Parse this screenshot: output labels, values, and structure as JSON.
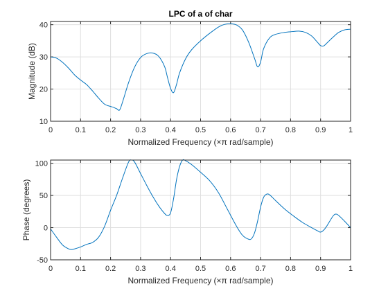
{
  "colors": {
    "line": "#0072bd",
    "grid": "#dfdfdf",
    "axis": "#262626",
    "background": "#ffffff"
  },
  "chart_data": [
    {
      "type": "line",
      "title": "LPC of a of char",
      "xlabel": "Normalized Frequency  (×π rad/sample)",
      "ylabel": "Magnitude (dB)",
      "xlim": [
        0,
        1
      ],
      "ylim": [
        10,
        41
      ],
      "xticks": [
        "0",
        "0.1",
        "0.2",
        "0.3",
        "0.4",
        "0.5",
        "0.6",
        "0.7",
        "0.8",
        "0.9",
        "1"
      ],
      "yticks": [
        "10",
        "20",
        "30",
        "40"
      ],
      "grid": true,
      "x": [
        0,
        0.02,
        0.04,
        0.06,
        0.08,
        0.1,
        0.12,
        0.14,
        0.16,
        0.18,
        0.2,
        0.21,
        0.22,
        0.23,
        0.24,
        0.26,
        0.28,
        0.3,
        0.32,
        0.34,
        0.36,
        0.38,
        0.39,
        0.4,
        0.41,
        0.42,
        0.43,
        0.45,
        0.47,
        0.5,
        0.53,
        0.56,
        0.58,
        0.6,
        0.62,
        0.64,
        0.66,
        0.68,
        0.69,
        0.7,
        0.71,
        0.73,
        0.75,
        0.78,
        0.8,
        0.83,
        0.85,
        0.87,
        0.89,
        0.9,
        0.91,
        0.92,
        0.94,
        0.96,
        0.98,
        1
      ],
      "y": [
        30,
        29.6,
        28.3,
        26.5,
        24.4,
        22.8,
        21.4,
        19.4,
        17.2,
        15.3,
        14.6,
        14.3,
        13.9,
        13.5,
        16,
        22,
        26.8,
        29.8,
        31,
        31.2,
        30.2,
        27,
        23.5,
        20.2,
        18.9,
        21.5,
        25,
        29.4,
        32.2,
        35,
        37.3,
        39.3,
        40.1,
        40.3,
        39.9,
        38.3,
        34.6,
        29.5,
        26.9,
        28.4,
        32.5,
        35.9,
        37,
        37.6,
        37.8,
        38,
        37.6,
        36.5,
        34.5,
        33.5,
        33.4,
        34.2,
        36,
        37.6,
        38.4,
        38.6
      ]
    },
    {
      "type": "line",
      "title": "",
      "xlabel": "Normalized Frequency  (×π rad/sample)",
      "ylabel": "Phase (degrees)",
      "xlim": [
        0,
        1
      ],
      "ylim": [
        -50,
        105
      ],
      "xticks": [
        "0",
        "0.1",
        "0.2",
        "0.3",
        "0.4",
        "0.5",
        "0.6",
        "0.7",
        "0.8",
        "0.9",
        "1"
      ],
      "yticks": [
        "-50",
        "0",
        "50",
        "100"
      ],
      "grid": true,
      "x": [
        0,
        0.02,
        0.04,
        0.06,
        0.07,
        0.08,
        0.1,
        0.12,
        0.14,
        0.16,
        0.18,
        0.2,
        0.22,
        0.24,
        0.26,
        0.27,
        0.28,
        0.3,
        0.32,
        0.34,
        0.36,
        0.38,
        0.39,
        0.4,
        0.41,
        0.42,
        0.43,
        0.44,
        0.45,
        0.47,
        0.5,
        0.53,
        0.56,
        0.59,
        0.62,
        0.64,
        0.66,
        0.67,
        0.68,
        0.69,
        0.7,
        0.71,
        0.72,
        0.73,
        0.75,
        0.78,
        0.81,
        0.84,
        0.87,
        0.89,
        0.9,
        0.91,
        0.92,
        0.94,
        0.95,
        0.96,
        0.98,
        1
      ],
      "y": [
        -2,
        -15,
        -27,
        -33,
        -34,
        -33,
        -30,
        -26,
        -23,
        -15,
        2,
        27,
        50,
        77,
        102,
        105,
        102,
        84,
        66,
        49,
        34,
        22,
        19,
        23,
        45,
        75,
        95,
        105,
        104,
        98,
        86,
        73,
        54,
        28,
        2,
        -12,
        -18,
        -17,
        -8,
        10,
        32,
        47,
        52,
        51,
        42,
        29,
        18,
        8,
        0,
        -5,
        -7,
        -4,
        2,
        17,
        21,
        19,
        10,
        0
      ]
    }
  ]
}
